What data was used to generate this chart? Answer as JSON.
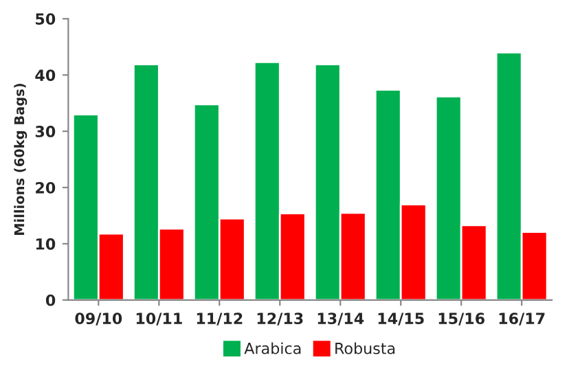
{
  "chart_data": {
    "type": "bar",
    "categories": [
      "09/10",
      "10/11",
      "11/12",
      "12/13",
      "13/14",
      "14/15",
      "15/16",
      "16/17"
    ],
    "series": [
      {
        "name": "Arabica",
        "color": "#00b050",
        "values": [
          33.0,
          41.9,
          34.8,
          42.3,
          41.9,
          37.4,
          36.2,
          44.0
        ]
      },
      {
        "name": "Robusta",
        "color": "#ff0000",
        "values": [
          11.8,
          12.7,
          14.5,
          15.4,
          15.5,
          17.0,
          13.3,
          12.1
        ]
      }
    ],
    "ylabel": "Millions (60kg Bags)",
    "ylim": [
      0,
      50
    ],
    "yticks": [
      0,
      10,
      20,
      30,
      40,
      50
    ],
    "grid": false,
    "legend": "bottom"
  }
}
